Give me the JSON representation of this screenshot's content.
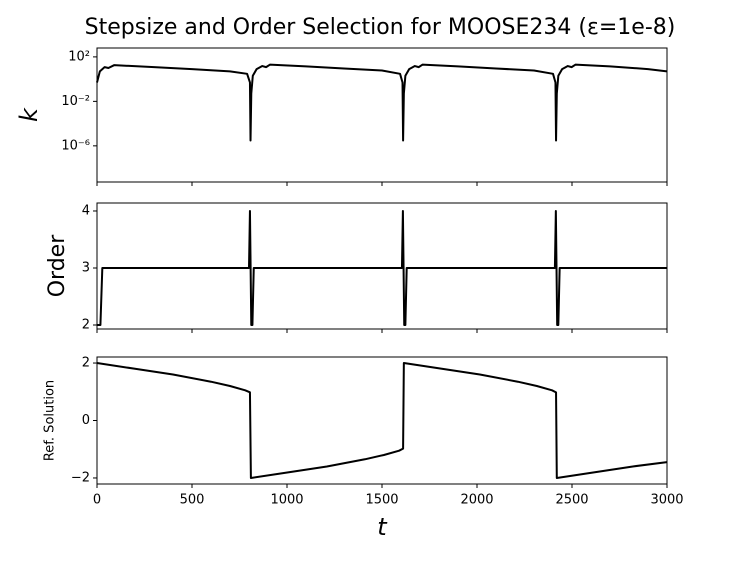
{
  "chart_data": [
    {
      "type": "line",
      "title": "Stepsize and Order Selection for MOOSE234 (ε=1e-8)",
      "ylabel": "k",
      "yscale": "log",
      "color": "#000000",
      "x": [
        0,
        15,
        40,
        60,
        90,
        300,
        500,
        700,
        790,
        805,
        808,
        812,
        820,
        840,
        870,
        890,
        910,
        1100,
        1300,
        1500,
        1595,
        1608,
        1611,
        1615,
        1623,
        1643,
        1673,
        1693,
        1713,
        1900,
        2100,
        2300,
        2400,
        2413,
        2416,
        2420,
        2428,
        2448,
        2478,
        2498,
        2518,
        2700,
        2900,
        3000
      ],
      "values": [
        0.5,
        5,
        12,
        10,
        18,
        12,
        8,
        5,
        3,
        0.5,
        3e-06,
        0.05,
        2,
        8,
        15,
        12,
        20,
        14,
        9,
        6,
        3,
        0.5,
        3e-06,
        0.05,
        2,
        8,
        15,
        12,
        20,
        14,
        9,
        6,
        3,
        0.5,
        3e-06,
        0.05,
        2,
        8,
        15,
        12,
        20,
        14,
        8,
        5
      ],
      "xlim": [
        0,
        3000
      ],
      "xticks": [
        0,
        500,
        1000,
        1500,
        2000,
        2500,
        3000
      ],
      "ylim": [
        5.6e-10,
        630
      ],
      "yticks": [
        {
          "value": 100,
          "label": "10²"
        },
        {
          "value": 0.01,
          "label": "10⁻²"
        },
        {
          "value": 1e-06,
          "label": "10⁻⁶"
        }
      ]
    },
    {
      "type": "line",
      "ylabel": "Order",
      "color": "#000000",
      "x": [
        0,
        18,
        28,
        800,
        805,
        812,
        818,
        825,
        1605,
        1610,
        1617,
        1623,
        1630,
        2410,
        2415,
        2422,
        2428,
        2435,
        3000
      ],
      "values": [
        2,
        2,
        3,
        3,
        4,
        2,
        2,
        3,
        3,
        4,
        2,
        2,
        3,
        3,
        4,
        2,
        2,
        3,
        3
      ],
      "xlim": [
        0,
        3000
      ],
      "xticks": [
        0,
        500,
        1000,
        1500,
        2000,
        2500,
        3000
      ],
      "ylim": [
        1.93,
        4.14
      ],
      "yticks": [
        2,
        3,
        4
      ]
    },
    {
      "type": "line",
      "ylabel": "Ref. Solution",
      "xlabel": "t",
      "color": "#000000",
      "x": [
        0,
        200,
        400,
        600,
        700,
        780,
        805,
        810,
        1010,
        1210,
        1410,
        1510,
        1590,
        1611,
        1615,
        1815,
        2015,
        2215,
        2315,
        2395,
        2416,
        2420,
        2620,
        2820,
        3000
      ],
      "values": [
        2.0,
        1.8,
        1.6,
        1.35,
        1.2,
        1.05,
        0.98,
        -2.0,
        -1.8,
        -1.6,
        -1.35,
        -1.2,
        -1.05,
        -0.98,
        2.0,
        1.8,
        1.6,
        1.35,
        1.2,
        1.05,
        0.98,
        -2.0,
        -1.8,
        -1.6,
        -1.45
      ],
      "xlim": [
        0,
        3000
      ],
      "xticks": [
        0,
        500,
        1000,
        1500,
        2000,
        2500,
        3000
      ],
      "ylim": [
        -2.21,
        2.21
      ],
      "yticks": [
        {
          "value": -2,
          "label": "−2"
        },
        0,
        2
      ]
    }
  ]
}
